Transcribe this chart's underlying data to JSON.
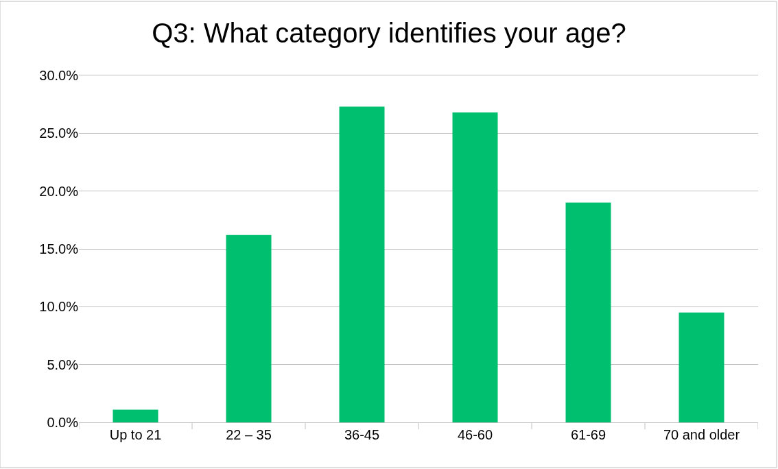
{
  "chart_data": {
    "type": "bar",
    "title": "Q3: What category identifies your age?",
    "categories": [
      "Up to 21",
      "22 – 35",
      "36-45",
      "46-60",
      "61-69",
      "70 and older"
    ],
    "values": [
      1.1,
      16.2,
      27.3,
      26.8,
      19.0,
      9.5
    ],
    "color": "#00c070",
    "ylim": [
      0,
      30
    ],
    "yticks": [
      {
        "value": 0,
        "label": "0.0%"
      },
      {
        "value": 5,
        "label": "5.0%"
      },
      {
        "value": 10,
        "label": "10.0%"
      },
      {
        "value": 15,
        "label": "15.0%"
      },
      {
        "value": 20,
        "label": "20.0%"
      },
      {
        "value": 25,
        "label": "25.0%"
      },
      {
        "value": 30,
        "label": "30.0%"
      }
    ],
    "grid": "y"
  }
}
